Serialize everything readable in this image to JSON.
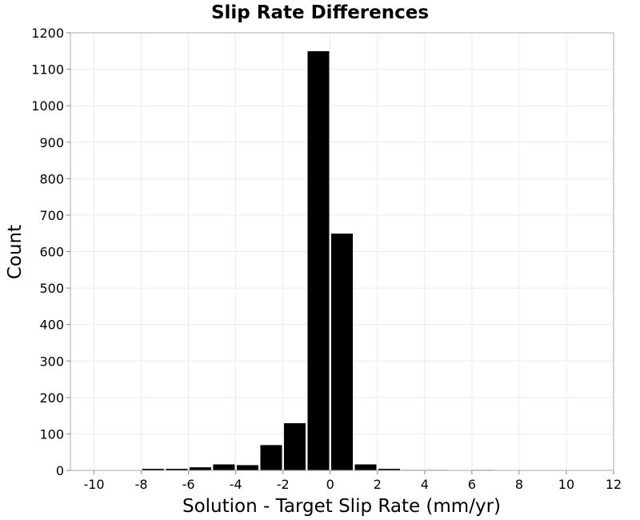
{
  "chart_data": {
    "type": "bar",
    "title": "Slip Rate Differences",
    "xlabel": "Solution - Target Slip Rate (mm/yr)",
    "ylabel": "Count",
    "xlim": [
      -11,
      12
    ],
    "ylim": [
      0,
      1200
    ],
    "x_ticks": [
      -10,
      -8,
      -6,
      -4,
      -2,
      0,
      2,
      4,
      6,
      8,
      10,
      12
    ],
    "y_ticks": [
      0,
      100,
      200,
      300,
      400,
      500,
      600,
      700,
      800,
      900,
      1000,
      1100,
      1200
    ],
    "bin_width": 1,
    "grid": true,
    "bar_color": "#000000",
    "bar_edge_color": "#ffffff",
    "x": [
      -10,
      -9,
      -8,
      -7,
      -6,
      -5,
      -4,
      -3,
      -2,
      -1,
      0,
      1,
      2,
      3,
      4,
      5,
      6,
      7,
      8,
      9,
      10,
      11
    ],
    "values": [
      1,
      0,
      5,
      5,
      9,
      17,
      15,
      70,
      130,
      1150,
      650,
      17,
      5,
      2,
      2,
      0,
      2,
      0,
      0,
      0,
      0,
      0
    ]
  }
}
